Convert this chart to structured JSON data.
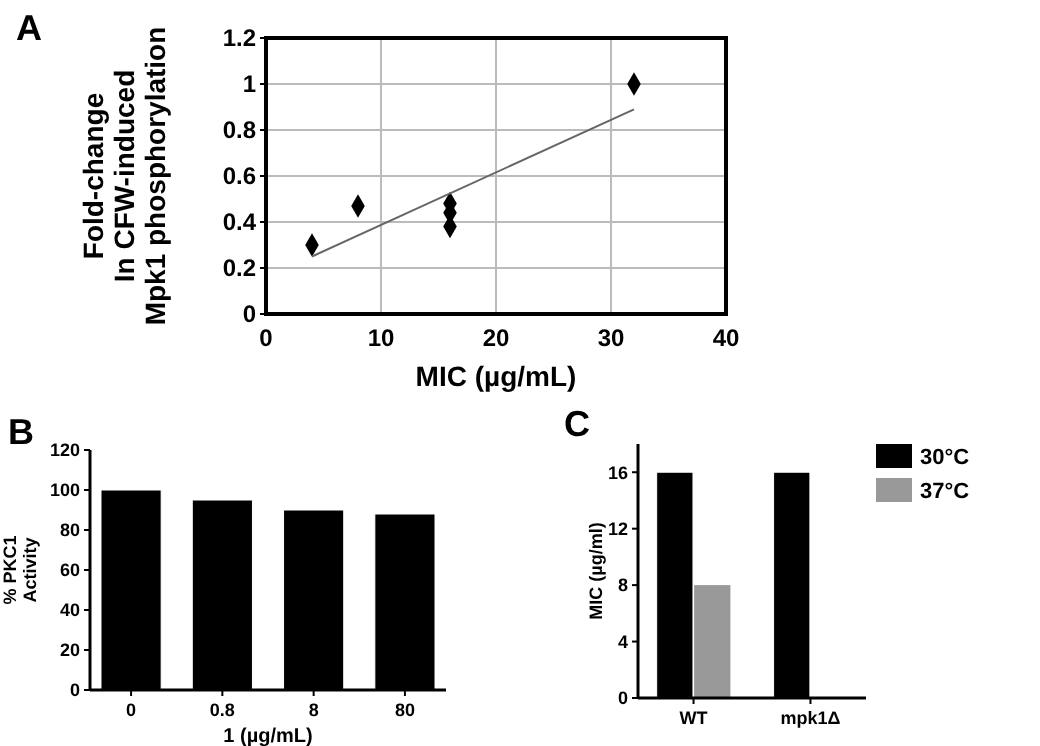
{
  "chart_data": [
    {
      "type": "scatter",
      "xlabel": "MIC (µg/mL)",
      "ylabel": "Fold-change\nIn CFW-induced\nMpk1 phosphorylation",
      "annotations": [
        "A"
      ],
      "xlim": [
        0,
        40
      ],
      "xticks": [
        0,
        10,
        20,
        30,
        40
      ],
      "ylim": [
        0,
        1.2
      ],
      "yticks": [
        0,
        0.2,
        0.4,
        0.6,
        0.8,
        1,
        1.2
      ],
      "grid": true,
      "series": [
        {
          "type": "scatter",
          "marker": "diamond",
          "color": "#000000",
          "x": [
            4,
            8,
            16,
            16,
            16,
            32
          ],
          "values": [
            0.3,
            0.47,
            0.48,
            0.44,
            0.38,
            1.0
          ]
        },
        {
          "type": "line",
          "color": "#666666",
          "x": [
            4,
            32
          ],
          "values": [
            0.25,
            0.89
          ],
          "line_style": "solid",
          "marker": "none"
        }
      ]
    },
    {
      "type": "bar",
      "xlabel": "1 (µg/mL)",
      "ylabel": "% PKC1\nActivity",
      "annotations": [
        "B"
      ],
      "categories": [
        "0",
        "0.8",
        "8",
        "80"
      ],
      "values": [
        100,
        95,
        90,
        88
      ],
      "color": "#000000",
      "ylim": [
        0,
        120
      ],
      "yticks": [
        0,
        20,
        40,
        60,
        80,
        100,
        120
      ]
    },
    {
      "type": "bar",
      "ylabel": "MIC (µg/ml)",
      "annotations": [
        "C"
      ],
      "categories": [
        "WT",
        "mpk1Δ"
      ],
      "ylim": [
        0,
        18
      ],
      "yticks": [
        0,
        4,
        8,
        12,
        16
      ],
      "legend": "top right",
      "series": [
        {
          "name": "30°C",
          "color": "#000000",
          "values": [
            16,
            16
          ]
        },
        {
          "name": "37°C",
          "color": "#999999",
          "values": [
            8,
            0
          ]
        }
      ]
    }
  ]
}
